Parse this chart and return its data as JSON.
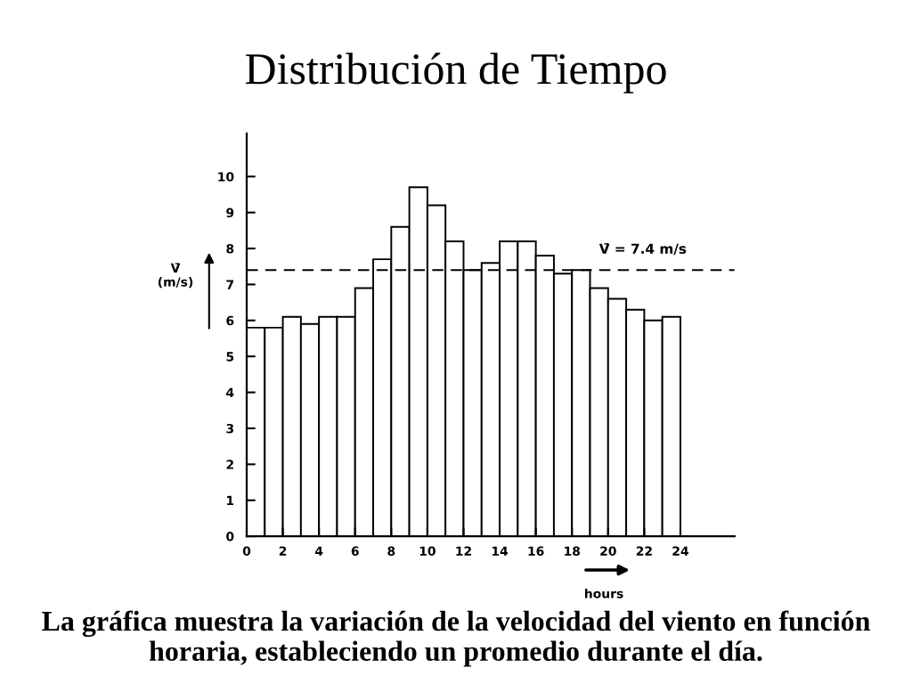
{
  "chart_data": {
    "type": "histogram",
    "title": "Distribución de Tiempo",
    "xlabel": "hours",
    "ylabel": "V̄\n(m/s)",
    "bins": [
      0,
      1,
      2,
      3,
      4,
      5,
      6,
      7,
      8,
      9,
      10,
      11,
      12,
      13,
      14,
      15,
      16,
      17,
      18,
      19,
      20,
      21,
      22,
      23,
      24
    ],
    "values": [
      5.8,
      5.8,
      6.1,
      5.9,
      6.1,
      6.1,
      6.9,
      7.7,
      8.6,
      9.7,
      9.2,
      8.2,
      7.4,
      7.6,
      8.2,
      8.2,
      7.8,
      7.3,
      7.4,
      6.9,
      6.6,
      6.3,
      6.0,
      6.1
    ],
    "color": "#ffffff",
    "xlim": [
      0,
      27
    ],
    "xticks": [
      0,
      2,
      4,
      6,
      8,
      10,
      12,
      14,
      16,
      18,
      20,
      22,
      24
    ],
    "ylim": [
      0,
      11.2
    ],
    "yticks": [
      0,
      1,
      2,
      3,
      4,
      5,
      6,
      7,
      8,
      9,
      10
    ],
    "grid": false,
    "ref_lines": [
      {
        "axis": "y",
        "value": 7.4,
        "label": "V̄ = 7.4 m/s",
        "color": "#000000",
        "line_style": "dashed"
      }
    ],
    "annotations": [
      "La gráfica muestra la variación de la velocidad del viento en función horaria, estableciendo un promedio durante el día."
    ]
  }
}
